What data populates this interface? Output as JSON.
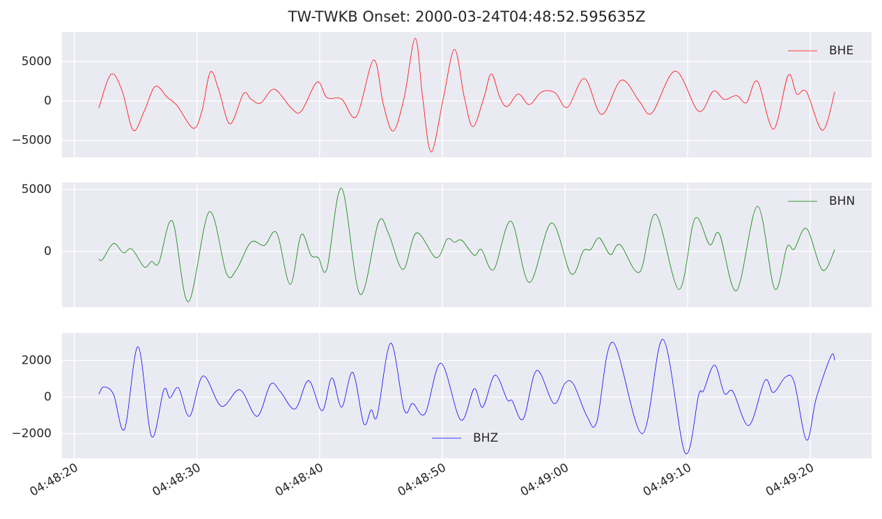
{
  "chart_data": [
    {
      "type": "line",
      "title": "TW-TWKB Onset: 2000-03-24T04:48:52.595635Z",
      "legend": "upper right",
      "grid": true,
      "x": [
        "04:48:22.0",
        "04:48:23.0",
        "04:48:23.9",
        "04:48:24.8",
        "04:48:25.7",
        "04:48:26.6",
        "04:48:27.6",
        "04:48:28.4",
        "04:48:29.7",
        "04:48:30.4",
        "04:48:31.1",
        "04:48:31.8",
        "04:48:32.7",
        "04:48:33.8",
        "04:48:34.4",
        "04:48:35.2",
        "04:48:36.3",
        "04:48:37.7",
        "04:48:38.5",
        "04:48:39.8",
        "04:48:40.6",
        "04:48:41.8",
        "04:48:43.0",
        "04:48:44.4",
        "04:48:45.2",
        "04:48:46.0",
        "04:48:46.9",
        "04:48:47.8",
        "04:48:48.4",
        "04:48:49.1",
        "04:48:50.1",
        "04:48:51.0",
        "04:48:51.8",
        "04:48:52.5",
        "04:48:53.4",
        "04:48:54.0",
        "04:48:54.7",
        "04:48:55.3",
        "04:48:56.2",
        "04:48:57.1",
        "04:48:58.1",
        "04:48:59.2",
        "04:49:00.2",
        "04:49:01.6",
        "04:49:03.0",
        "04:49:04.6",
        "04:49:06.1",
        "04:49:07.1",
        "04:49:09.0",
        "04:49:10.9",
        "04:49:12.1",
        "04:49:13.0",
        "04:49:14.0",
        "04:49:14.8",
        "04:49:15.7",
        "04:49:17.0",
        "04:49:18.2",
        "04:49:18.9",
        "04:49:19.7",
        "04:49:21.0",
        "04:49:22.0"
      ],
      "series": [
        {
          "name": "BHE",
          "color": "#ff0000",
          "values": [
            -900,
            3400,
            1300,
            -3700,
            -1300,
            1850,
            450,
            -600,
            -3450,
            -1300,
            3700,
            1300,
            -2900,
            950,
            250,
            -250,
            1500,
            -900,
            -1300,
            2400,
            450,
            250,
            -1950,
            5200,
            -450,
            -3800,
            450,
            7950,
            450,
            -6450,
            450,
            6550,
            450,
            -3250,
            450,
            3450,
            450,
            -700,
            900,
            -450,
            1150,
            1050,
            -800,
            2850,
            -1700,
            2650,
            -100,
            -1500,
            3800,
            -1300,
            1250,
            200,
            700,
            -200,
            2500,
            -3550,
            3250,
            900,
            1150,
            -3700,
            1150
          ]
        }
      ],
      "ylim": [
        -7150,
        8750
      ],
      "yticks": [
        {
          "value": -5000,
          "label": "−5000"
        },
        0,
        5000
      ]
    },
    {
      "type": "line",
      "legend": "upper right",
      "grid": true,
      "x": [
        "04:48:22.0",
        "04:48:22.3",
        "04:48:23.2",
        "04:48:24.0",
        "04:48:24.7",
        "04:48:25.7",
        "04:48:26.3",
        "04:48:26.9",
        "04:48:28.0",
        "04:48:29.3",
        "04:48:31.0",
        "04:48:32.4",
        "04:48:33.2",
        "04:48:34.4",
        "04:48:35.5",
        "04:48:36.5",
        "04:48:37.6",
        "04:48:38.5",
        "04:48:39.3",
        "04:48:39.9",
        "04:48:40.6",
        "04:48:41.8",
        "04:48:43.3",
        "04:48:44.8",
        "04:48:45.6",
        "04:48:46.8",
        "04:48:47.9",
        "04:48:49.5",
        "04:48:50.4",
        "04:48:51.0",
        "04:48:51.6",
        "04:48:52.6",
        "04:48:53.2",
        "04:48:54.2",
        "04:48:55.6",
        "04:48:57.1",
        "04:48:58.9",
        "04:49:00.5",
        "04:49:01.5",
        "04:49:02.1",
        "04:49:02.8",
        "04:49:03.7",
        "04:49:04.5",
        "04:49:06.1",
        "04:49:07.4",
        "04:49:09.3",
        "04:49:10.6",
        "04:49:11.8",
        "04:49:12.6",
        "04:49:14.0",
        "04:49:15.7",
        "04:49:17.1",
        "04:49:18.1",
        "04:49:18.7",
        "04:49:19.7",
        "04:49:21.0",
        "04:49:22.0"
      ],
      "series": [
        {
          "name": "BHN",
          "color": "#008000",
          "values": [
            -600,
            -650,
            650,
            -100,
            200,
            -1250,
            -800,
            -900,
            2450,
            -4050,
            3200,
            -1750,
            -1500,
            750,
            500,
            1500,
            -2650,
            1350,
            -300,
            -500,
            -1400,
            5100,
            -3450,
            2350,
            1500,
            -1450,
            1500,
            -500,
            1000,
            750,
            900,
            -300,
            150,
            -1450,
            2450,
            -2500,
            2300,
            -1800,
            50,
            150,
            1100,
            -250,
            550,
            -1650,
            3000,
            -3050,
            2650,
            550,
            1400,
            -3150,
            3650,
            -3000,
            350,
            200,
            1850,
            -1500,
            150
          ]
        }
      ],
      "ylim": [
        -4490,
        5560
      ],
      "yticks": [
        0,
        5000
      ]
    },
    {
      "type": "line",
      "legend": "lower center",
      "grid": true,
      "x": [
        "04:48:22.0",
        "04:48:22.4",
        "04:48:23.2",
        "04:48:24.1",
        "04:48:25.2",
        "04:48:26.3",
        "04:48:27.3",
        "04:48:27.8",
        "04:48:28.5",
        "04:48:29.4",
        "04:48:30.5",
        "04:48:32.0",
        "04:48:33.5",
        "04:48:34.9",
        "04:48:36.0",
        "04:48:36.8",
        "04:48:38.0",
        "04:48:39.1",
        "04:48:40.2",
        "04:48:41.0",
        "04:48:41.8",
        "04:48:42.7",
        "04:48:43.6",
        "04:48:44.2",
        "04:48:44.7",
        "04:48:45.8",
        "04:48:46.9",
        "04:48:47.6",
        "04:48:48.6",
        "04:48:49.9",
        "04:48:51.5",
        "04:48:52.6",
        "04:48:53.3",
        "04:48:54.3",
        "04:48:55.3",
        "04:48:55.7",
        "04:48:56.6",
        "04:48:57.7",
        "04:48:59.1",
        "04:49:00.0",
        "04:49:00.7",
        "04:49:01.8",
        "04:49:02.6",
        "04:49:03.9",
        "04:49:06.3",
        "04:49:08.0",
        "04:49:09.8",
        "04:49:10.9",
        "04:49:11.3",
        "04:49:12.2",
        "04:49:13.0",
        "04:49:13.7",
        "04:49:15.0",
        "04:49:16.3",
        "04:49:17.0",
        "04:49:18.0",
        "04:49:18.7",
        "04:49:19.7",
        "04:49:20.5",
        "04:49:21.7",
        "04:49:22.0"
      ],
      "series": [
        {
          "name": "BHZ",
          "color": "#0000ff",
          "values": [
            150,
            550,
            150,
            -1750,
            2750,
            -2150,
            400,
            -50,
            500,
            -1050,
            1150,
            -500,
            400,
            -1050,
            700,
            300,
            -650,
            900,
            -750,
            1050,
            -550,
            1350,
            -1450,
            -700,
            -1000,
            2950,
            -700,
            -350,
            -900,
            1850,
            -1250,
            450,
            -550,
            1200,
            -150,
            -200,
            -1200,
            1450,
            -350,
            750,
            700,
            -1050,
            -1350,
            3000,
            -2000,
            3150,
            -3050,
            100,
            350,
            1750,
            200,
            300,
            -1550,
            900,
            250,
            1100,
            800,
            -2350,
            -50,
            2250,
            2000
          ]
        }
      ],
      "ylim": [
        -3350,
        3500
      ],
      "yticks": [
        {
          "value": -2000,
          "label": "−2000"
        },
        0,
        2000
      ],
      "xlim": [
        "04:48:19.0",
        "04:49:25.0"
      ],
      "xticks": [
        "04:48:20",
        "04:48:30",
        "04:48:40",
        "04:48:50",
        "04:49:00",
        "04:49:10",
        "04:49:20"
      ]
    }
  ]
}
